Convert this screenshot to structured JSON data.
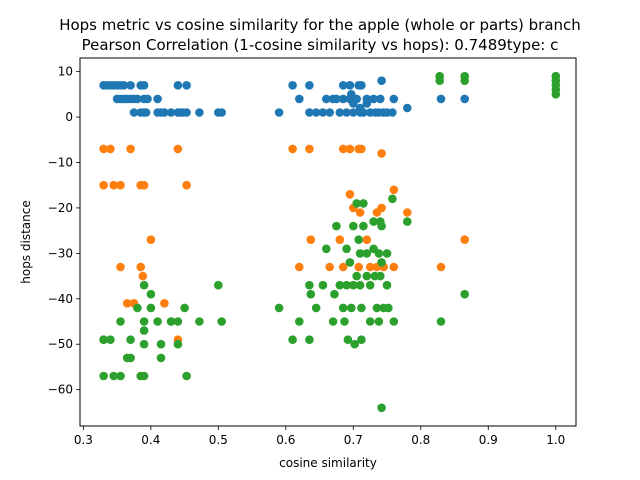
{
  "chart_data": {
    "type": "scatter",
    "title_line1": "Hops metric vs cosine similarity for the apple (whole or parts) branch",
    "title_line2": "Pearson Correlation (1-cosine similarity vs hops): 0.7489type: c",
    "xlabel": "cosine similarity",
    "ylabel": "hops distance",
    "xlim": [
      0.295,
      1.03
    ],
    "ylim": [
      -68,
      13
    ],
    "x_ticks": [
      0.3,
      0.4,
      0.5,
      0.6,
      0.7,
      0.8,
      0.9,
      1.0
    ],
    "x_tick_labels": [
      "0.3",
      "0.4",
      "0.5",
      "0.6",
      "0.7",
      "0.8",
      "0.9",
      "1.0"
    ],
    "y_ticks": [
      -60,
      -50,
      -40,
      -30,
      -20,
      -10,
      0,
      10
    ],
    "y_tick_labels": [
      "−60",
      "−50",
      "−40",
      "−30",
      "−20",
      "−10",
      "0",
      "10"
    ],
    "grid": false,
    "series": [
      {
        "color": "#1f77b4",
        "points": [
          [
            0.33,
            7
          ],
          [
            0.335,
            7
          ],
          [
            0.34,
            7
          ],
          [
            0.345,
            7
          ],
          [
            0.35,
            7
          ],
          [
            0.355,
            7
          ],
          [
            0.36,
            7
          ],
          [
            0.37,
            7
          ],
          [
            0.385,
            7
          ],
          [
            0.39,
            7
          ],
          [
            0.44,
            7
          ],
          [
            0.453,
            7
          ],
          [
            0.35,
            4
          ],
          [
            0.355,
            4
          ],
          [
            0.36,
            4
          ],
          [
            0.365,
            4
          ],
          [
            0.37,
            4
          ],
          [
            0.375,
            4
          ],
          [
            0.38,
            4
          ],
          [
            0.39,
            4
          ],
          [
            0.395,
            4
          ],
          [
            0.41,
            4
          ],
          [
            0.375,
            1
          ],
          [
            0.385,
            1
          ],
          [
            0.39,
            1
          ],
          [
            0.393,
            1
          ],
          [
            0.41,
            1
          ],
          [
            0.415,
            1
          ],
          [
            0.42,
            1
          ],
          [
            0.43,
            1
          ],
          [
            0.44,
            1
          ],
          [
            0.443,
            1
          ],
          [
            0.447,
            1
          ],
          [
            0.453,
            1
          ],
          [
            0.472,
            1
          ],
          [
            0.5,
            1
          ],
          [
            0.505,
            1
          ],
          [
            0.59,
            1
          ],
          [
            0.61,
            7
          ],
          [
            0.62,
            4
          ],
          [
            0.635,
            7
          ],
          [
            0.635,
            1
          ],
          [
            0.645,
            1
          ],
          [
            0.655,
            1
          ],
          [
            0.66,
            4
          ],
          [
            0.665,
            1
          ],
          [
            0.67,
            4
          ],
          [
            0.675,
            4
          ],
          [
            0.68,
            1
          ],
          [
            0.685,
            7
          ],
          [
            0.685,
            4
          ],
          [
            0.69,
            1
          ],
          [
            0.695,
            7
          ],
          [
            0.695,
            4
          ],
          [
            0.697,
            5
          ],
          [
            0.7,
            1
          ],
          [
            0.705,
            4
          ],
          [
            0.708,
            7
          ],
          [
            0.71,
            1
          ],
          [
            0.71,
            2
          ],
          [
            0.712,
            7
          ],
          [
            0.715,
            1
          ],
          [
            0.72,
            4
          ],
          [
            0.725,
            1
          ],
          [
            0.73,
            4
          ],
          [
            0.733,
            1
          ],
          [
            0.738,
            1
          ],
          [
            0.74,
            4
          ],
          [
            0.742,
            8
          ],
          [
            0.745,
            1
          ],
          [
            0.75,
            1
          ],
          [
            0.758,
            1
          ],
          [
            0.76,
            4
          ],
          [
            0.78,
            2
          ],
          [
            0.83,
            4
          ],
          [
            0.865,
            4
          ],
          [
            0.7,
            3
          ],
          [
            0.72,
            3
          ]
        ]
      },
      {
        "color": "#ff7f0e",
        "points": [
          [
            0.33,
            -7
          ],
          [
            0.34,
            -7
          ],
          [
            0.37,
            -7
          ],
          [
            0.44,
            -7
          ],
          [
            0.33,
            -15
          ],
          [
            0.345,
            -15
          ],
          [
            0.355,
            -15
          ],
          [
            0.385,
            -15
          ],
          [
            0.39,
            -15
          ],
          [
            0.453,
            -15
          ],
          [
            0.4,
            -27
          ],
          [
            0.385,
            -33
          ],
          [
            0.355,
            -33
          ],
          [
            0.388,
            -35
          ],
          [
            0.365,
            -41
          ],
          [
            0.375,
            -41
          ],
          [
            0.42,
            -41
          ],
          [
            0.44,
            -49
          ],
          [
            0.33,
            -49
          ],
          [
            0.61,
            -7
          ],
          [
            0.635,
            -7
          ],
          [
            0.685,
            -7
          ],
          [
            0.695,
            -7
          ],
          [
            0.708,
            -7
          ],
          [
            0.712,
            -7
          ],
          [
            0.742,
            -8
          ],
          [
            0.76,
            -16
          ],
          [
            0.695,
            -17
          ],
          [
            0.7,
            -20
          ],
          [
            0.71,
            -21
          ],
          [
            0.735,
            -21
          ],
          [
            0.742,
            -20
          ],
          [
            0.78,
            -21
          ],
          [
            0.62,
            -33
          ],
          [
            0.637,
            -27
          ],
          [
            0.665,
            -33
          ],
          [
            0.68,
            -27
          ],
          [
            0.685,
            -33
          ],
          [
            0.72,
            -27
          ],
          [
            0.725,
            -33
          ],
          [
            0.735,
            -33
          ],
          [
            0.745,
            -33
          ],
          [
            0.76,
            -33
          ],
          [
            0.708,
            -33
          ],
          [
            0.83,
            -33
          ],
          [
            0.865,
            -27
          ]
        ]
      },
      {
        "color": "#2ca02c",
        "points": [
          [
            0.33,
            -57
          ],
          [
            0.345,
            -57
          ],
          [
            0.355,
            -57
          ],
          [
            0.385,
            -57
          ],
          [
            0.39,
            -57
          ],
          [
            0.453,
            -57
          ],
          [
            0.33,
            -49
          ],
          [
            0.34,
            -49
          ],
          [
            0.37,
            -49
          ],
          [
            0.39,
            -50
          ],
          [
            0.415,
            -50
          ],
          [
            0.355,
            -45
          ],
          [
            0.39,
            -45
          ],
          [
            0.41,
            -45
          ],
          [
            0.43,
            -45
          ],
          [
            0.44,
            -45
          ],
          [
            0.472,
            -45
          ],
          [
            0.505,
            -45
          ],
          [
            0.365,
            -53
          ],
          [
            0.37,
            -53
          ],
          [
            0.415,
            -53
          ],
          [
            0.38,
            -42
          ],
          [
            0.4,
            -42
          ],
          [
            0.45,
            -42
          ],
          [
            0.39,
            -37
          ],
          [
            0.39,
            -47
          ],
          [
            0.44,
            -50
          ],
          [
            0.4,
            -39
          ],
          [
            0.5,
            -37
          ],
          [
            0.43,
            -45
          ],
          [
            0.59,
            -42
          ],
          [
            0.61,
            -49
          ],
          [
            0.62,
            -45
          ],
          [
            0.635,
            -49
          ],
          [
            0.635,
            -37
          ],
          [
            0.637,
            -39
          ],
          [
            0.645,
            -42
          ],
          [
            0.655,
            -37
          ],
          [
            0.66,
            -29
          ],
          [
            0.67,
            -45
          ],
          [
            0.672,
            -39
          ],
          [
            0.675,
            -24
          ],
          [
            0.68,
            -37
          ],
          [
            0.685,
            -42
          ],
          [
            0.687,
            -45
          ],
          [
            0.69,
            -29
          ],
          [
            0.69,
            -37
          ],
          [
            0.692,
            -49
          ],
          [
            0.695,
            -32
          ],
          [
            0.697,
            -42
          ],
          [
            0.7,
            -24
          ],
          [
            0.7,
            -37
          ],
          [
            0.702,
            -50
          ],
          [
            0.705,
            -19
          ],
          [
            0.705,
            -35
          ],
          [
            0.708,
            -27
          ],
          [
            0.71,
            -30
          ],
          [
            0.71,
            -37
          ],
          [
            0.712,
            -42
          ],
          [
            0.712,
            -49
          ],
          [
            0.715,
            -19
          ],
          [
            0.715,
            -24
          ],
          [
            0.72,
            -30
          ],
          [
            0.72,
            -35
          ],
          [
            0.725,
            -37
          ],
          [
            0.725,
            -45
          ],
          [
            0.73,
            -23
          ],
          [
            0.73,
            -29
          ],
          [
            0.732,
            -35
          ],
          [
            0.735,
            -42
          ],
          [
            0.738,
            -30
          ],
          [
            0.738,
            -45
          ],
          [
            0.74,
            -23
          ],
          [
            0.74,
            -35
          ],
          [
            0.742,
            -24
          ],
          [
            0.742,
            -32
          ],
          [
            0.742,
            -64
          ],
          [
            0.745,
            -42
          ],
          [
            0.75,
            -30
          ],
          [
            0.75,
            -37
          ],
          [
            0.752,
            -42
          ],
          [
            0.758,
            -18
          ],
          [
            0.76,
            -45
          ],
          [
            0.78,
            -23
          ],
          [
            0.83,
            -45
          ],
          [
            0.865,
            -39
          ]
        ]
      },
      {
        "color": "#2ca02c",
        "points": [
          [
            0.828,
            9
          ],
          [
            0.828,
            8
          ],
          [
            0.865,
            9
          ],
          [
            0.865,
            8
          ],
          [
            1.0,
            9
          ],
          [
            1.0,
            8
          ],
          [
            1.0,
            7
          ],
          [
            1.0,
            6
          ],
          [
            1.0,
            5
          ]
        ]
      }
    ]
  }
}
